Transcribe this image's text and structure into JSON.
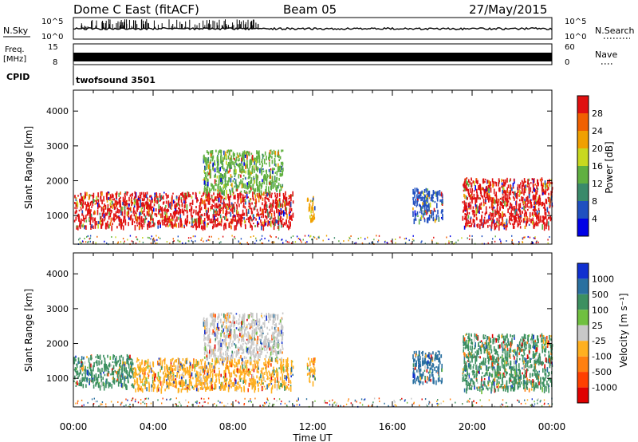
{
  "header": {
    "station": "Dome C East (fitACF)",
    "beam": "Beam 05",
    "date": "27/May/2015"
  },
  "top_panels": {
    "nsky_label": "N.Sky",
    "nsky_ticks": [
      "10^5",
      "10^0"
    ],
    "nsearch_label": "N.Search",
    "nsearch_ticks": [
      "10^5",
      "10^0"
    ],
    "freq_label_1": "Freq.",
    "freq_label_2": "[MHz]",
    "freq_ticks": [
      "15",
      "8"
    ],
    "nave_label": "Nave",
    "nave_ticks": [
      "60",
      "0"
    ],
    "cpid_label": "CPID",
    "cpid_value": "twofsound 3501"
  },
  "x_axis": {
    "label": "Time UT",
    "ticks": [
      "00:00",
      "04:00",
      "08:00",
      "12:00",
      "16:00",
      "20:00",
      "00:00"
    ]
  },
  "power_colorbar": {
    "label": "Power [dB]",
    "ticks": [
      "28",
      "24",
      "20",
      "16",
      "12",
      "8",
      "4"
    ],
    "colors": [
      "#0000e6",
      "#2050c0",
      "#3a8a6a",
      "#60b040",
      "#c8d820",
      "#f0a000",
      "#f06000",
      "#e01010"
    ]
  },
  "velocity_colorbar": {
    "label": "Velocity [m s⁻¹]",
    "ticks": [
      "1000",
      "500",
      "100",
      "25",
      "-25",
      "-100",
      "-500",
      "-1000"
    ],
    "colors": [
      "#1030d0",
      "#2a70a0",
      "#3c9060",
      "#70c040",
      "#c8c8c8",
      "#ffb020",
      "#ff8010",
      "#ff4000",
      "#e00000"
    ]
  },
  "chart_data": [
    {
      "type": "heatmap",
      "title": "Power",
      "ylabel": "Slant Range [km]",
      "y_ticks": [
        "4000",
        "3000",
        "2000",
        "1000"
      ],
      "xlim_hours": [
        0,
        24
      ],
      "ylim_km": [
        180,
        4600
      ],
      "echo_regions": [
        {
          "t_start": 0.0,
          "t_end": 11.0,
          "range_min_km": 700,
          "range_max_km": 1700,
          "dominant_power_db": 28
        },
        {
          "t_start": 6.5,
          "t_end": 10.5,
          "range_min_km": 1700,
          "range_max_km": 2900,
          "dominant_power_db": 14
        },
        {
          "t_start": 11.7,
          "t_end": 12.1,
          "range_min_km": 900,
          "range_max_km": 1600,
          "dominant_power_db": 20
        },
        {
          "t_start": 17.0,
          "t_end": 18.5,
          "range_min_km": 900,
          "range_max_km": 1800,
          "dominant_power_db": 6
        },
        {
          "t_start": 19.5,
          "t_end": 24.0,
          "range_min_km": 700,
          "range_max_km": 2100,
          "dominant_power_db": 28
        }
      ]
    },
    {
      "type": "heatmap",
      "title": "Velocity",
      "ylabel": "Slant Range [km]",
      "y_ticks": [
        "4000",
        "3000",
        "2000",
        "1000"
      ],
      "xlim_hours": [
        0,
        24
      ],
      "ylim_km": [
        180,
        4600
      ],
      "echo_regions": [
        {
          "t_start": 0.0,
          "t_end": 3.0,
          "range_min_km": 800,
          "range_max_km": 1700,
          "dominant_velocity_ms": 100
        },
        {
          "t_start": 3.0,
          "t_end": 11.0,
          "range_min_km": 700,
          "range_max_km": 1600,
          "dominant_velocity_ms": -100
        },
        {
          "t_start": 6.5,
          "t_end": 10.5,
          "range_min_km": 1600,
          "range_max_km": 2900,
          "dominant_velocity_ms": -25
        },
        {
          "t_start": 11.7,
          "t_end": 12.1,
          "range_min_km": 900,
          "range_max_km": 1600,
          "dominant_velocity_ms": -100
        },
        {
          "t_start": 17.0,
          "t_end": 18.5,
          "range_min_km": 900,
          "range_max_km": 1800,
          "dominant_velocity_ms": 500
        },
        {
          "t_start": 19.5,
          "t_end": 24.0,
          "range_min_km": 700,
          "range_max_km": 2300,
          "dominant_velocity_ms": 100
        }
      ]
    }
  ]
}
